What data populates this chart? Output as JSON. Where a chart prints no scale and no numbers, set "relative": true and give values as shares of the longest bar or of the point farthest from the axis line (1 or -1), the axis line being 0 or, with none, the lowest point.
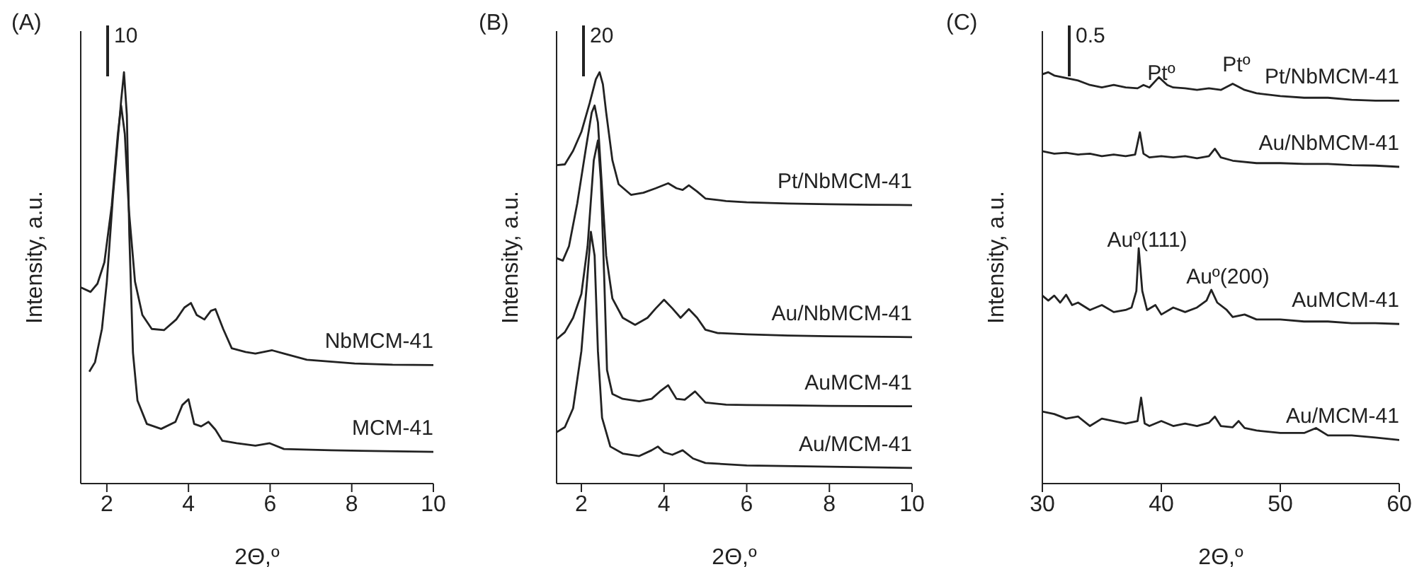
{
  "chart_data": [
    {
      "type": "line",
      "title": "(A)",
      "xlabel": "2Θ,º",
      "ylabel": "Intensity, a.u.",
      "relative": true,
      "xlim": [
        1.36,
        10
      ],
      "xticks": [
        2,
        4,
        6,
        8,
        10
      ],
      "annotations": [
        "10"
      ],
      "series": [
        {
          "name": "NbMCM-41",
          "color": "#222222",
          "x": [
            1.36,
            1.6,
            1.77,
            1.94,
            2.12,
            2.27,
            2.35,
            2.44,
            2.54,
            2.69,
            2.87,
            3.1,
            3.4,
            3.7,
            3.9,
            4.06,
            4.2,
            4.39,
            4.55,
            4.66,
            4.85,
            5.06,
            5.4,
            5.64,
            6.05,
            6.34,
            6.9,
            8.07,
            9,
            10
          ],
          "values": [
            0.477,
            0.466,
            0.486,
            0.538,
            0.676,
            0.85,
            0.919,
            0.85,
            0.665,
            0.491,
            0.41,
            0.376,
            0.373,
            0.399,
            0.428,
            0.439,
            0.41,
            0.399,
            0.42,
            0.424,
            0.376,
            0.329,
            0.32,
            0.316,
            0.324,
            0.316,
            0.301,
            0.292,
            0.289,
            0.288
          ]
        },
        {
          "name": "MCM-41",
          "color": "#222222",
          "x": [
            1.57,
            1.71,
            1.88,
            2.0,
            2.15,
            2.27,
            2.35,
            2.42,
            2.49,
            2.55,
            2.64,
            2.75,
            2.98,
            3.33,
            3.68,
            3.85,
            4.0,
            4.14,
            4.31,
            4.49,
            4.66,
            4.83,
            5.18,
            5.64,
            5.99,
            6.34,
            7.49,
            10
          ],
          "values": [
            0.272,
            0.295,
            0.376,
            0.491,
            0.699,
            0.838,
            0.931,
            1,
            0.896,
            0.607,
            0.318,
            0.202,
            0.145,
            0.133,
            0.15,
            0.191,
            0.205,
            0.145,
            0.139,
            0.15,
            0.131,
            0.104,
            0.098,
            0.092,
            0.098,
            0.084,
            0.081,
            0.077
          ]
        }
      ]
    },
    {
      "type": "line",
      "title": "(B)",
      "xlabel": "2Θ,º",
      "ylabel": "Intensity, a.u.",
      "relative": true,
      "xlim": [
        1.4,
        10
      ],
      "xticks": [
        2,
        4,
        6,
        8,
        10
      ],
      "annotations": [
        "20"
      ],
      "series": [
        {
          "name": "Pt/NbMCM-41",
          "color": "#222222",
          "x": [
            1.4,
            1.6,
            1.8,
            2.0,
            2.2,
            2.35,
            2.44,
            2.52,
            2.6,
            2.75,
            2.9,
            3.2,
            3.5,
            3.8,
            4.1,
            4.3,
            4.45,
            4.6,
            4.8,
            5.0,
            5.5,
            6,
            7,
            8,
            9,
            10
          ],
          "values": [
            0.774,
            0.776,
            0.809,
            0.855,
            0.925,
            0.983,
            1,
            0.971,
            0.902,
            0.786,
            0.728,
            0.702,
            0.707,
            0.718,
            0.73,
            0.718,
            0.714,
            0.725,
            0.71,
            0.693,
            0.687,
            0.684,
            0.681,
            0.679,
            0.678,
            0.677
          ]
        },
        {
          "name": "Au/NbMCM-41",
          "color": "#222222",
          "x": [
            1.4,
            1.55,
            1.7,
            1.9,
            2.1,
            2.25,
            2.32,
            2.4,
            2.5,
            2.6,
            2.75,
            3.0,
            3.3,
            3.6,
            3.8,
            4.0,
            4.2,
            4.4,
            4.6,
            4.8,
            5.0,
            5.3,
            6,
            7,
            8,
            10
          ],
          "values": [
            0.548,
            0.542,
            0.577,
            0.681,
            0.809,
            0.902,
            0.919,
            0.878,
            0.716,
            0.554,
            0.45,
            0.403,
            0.386,
            0.403,
            0.426,
            0.447,
            0.426,
            0.403,
            0.424,
            0.403,
            0.374,
            0.366,
            0.363,
            0.36,
            0.358,
            0.356
          ]
        },
        {
          "name": "AuMCM-41",
          "color": "#222222",
          "x": [
            1.4,
            1.6,
            1.8,
            2.0,
            2.15,
            2.3,
            2.4,
            2.47,
            2.55,
            2.62,
            2.75,
            3.0,
            3.4,
            3.7,
            3.9,
            4.1,
            4.3,
            4.5,
            4.75,
            5.0,
            5.5,
            6,
            7,
            8,
            10
          ],
          "values": [
            0.351,
            0.368,
            0.403,
            0.461,
            0.577,
            0.786,
            0.834,
            0.739,
            0.508,
            0.276,
            0.218,
            0.206,
            0.2,
            0.206,
            0.224,
            0.239,
            0.206,
            0.204,
            0.224,
            0.197,
            0.192,
            0.191,
            0.19,
            0.189,
            0.188
          ]
        },
        {
          "name": "Au/MCM-41",
          "color": "#222222",
          "x": [
            1.4,
            1.6,
            1.8,
            2.0,
            2.15,
            2.23,
            2.32,
            2.4,
            2.5,
            2.7,
            3.0,
            3.4,
            3.7,
            3.85,
            4.0,
            4.2,
            4.45,
            4.7,
            5.0,
            6,
            8,
            10
          ],
          "values": [
            0.125,
            0.137,
            0.183,
            0.322,
            0.508,
            0.612,
            0.554,
            0.322,
            0.16,
            0.09,
            0.073,
            0.067,
            0.081,
            0.09,
            0.076,
            0.07,
            0.081,
            0.061,
            0.05,
            0.044,
            0.041,
            0.038
          ]
        }
      ]
    },
    {
      "type": "line",
      "title": "(C)",
      "xlabel": "2Θ,º",
      "ylabel": "Intensity, a.u.",
      "relative": true,
      "xlim": [
        30,
        60
      ],
      "xticks": [
        30,
        40,
        50,
        60
      ],
      "annotations": [
        "0.5",
        "Ptº",
        "Ptº",
        "Auº(111)",
        "Auº(200)"
      ],
      "series": [
        {
          "name": "Pt/NbMCM-41",
          "color": "#222222",
          "x": [
            30,
            30.5,
            31,
            32,
            33,
            34,
            35,
            36,
            37,
            38,
            38.5,
            39,
            39.8,
            40.5,
            41,
            42,
            43,
            44,
            45,
            46,
            47,
            48,
            50,
            52,
            54,
            56,
            58,
            60
          ],
          "values": [
            0.995,
            1,
            0.992,
            0.986,
            0.98,
            0.969,
            0.963,
            0.969,
            0.963,
            0.961,
            0.969,
            0.963,
            0.988,
            0.969,
            0.963,
            0.961,
            0.957,
            0.961,
            0.957,
            0.972,
            0.957,
            0.949,
            0.942,
            0.938,
            0.938,
            0.933,
            0.931,
            0.931
          ]
        },
        {
          "name": "Au/NbMCM-41",
          "color": "#222222",
          "x": [
            30,
            31,
            32,
            33,
            34,
            35,
            36,
            37,
            37.8,
            38.2,
            38.5,
            39,
            40,
            41,
            42,
            43,
            44,
            44.5,
            45,
            46,
            48,
            50,
            52,
            54,
            56,
            58,
            60
          ],
          "values": [
            0.808,
            0.802,
            0.804,
            0.8,
            0.802,
            0.796,
            0.8,
            0.796,
            0.8,
            0.854,
            0.802,
            0.793,
            0.796,
            0.793,
            0.796,
            0.791,
            0.796,
            0.814,
            0.793,
            0.785,
            0.779,
            0.779,
            0.777,
            0.777,
            0.774,
            0.773,
            0.77
          ]
        },
        {
          "name": "AuMCM-41",
          "color": "#222222",
          "x": [
            30,
            30.5,
            31,
            31.5,
            32,
            32.5,
            33,
            34,
            35,
            36,
            37,
            37.5,
            37.9,
            38.1,
            38.4,
            38.8,
            39.5,
            40,
            41,
            42,
            43,
            43.8,
            44.2,
            44.7,
            45.5,
            46,
            47,
            48,
            50,
            52,
            54,
            56,
            58,
            60
          ],
          "values": [
            0.457,
            0.445,
            0.457,
            0.44,
            0.459,
            0.434,
            0.44,
            0.422,
            0.434,
            0.417,
            0.422,
            0.428,
            0.468,
            0.572,
            0.468,
            0.422,
            0.434,
            0.411,
            0.428,
            0.417,
            0.428,
            0.445,
            0.471,
            0.44,
            0.422,
            0.405,
            0.411,
            0.399,
            0.399,
            0.394,
            0.394,
            0.39,
            0.39,
            0.388
          ]
        },
        {
          "name": "Au/MCM-41",
          "color": "#222222",
          "x": [
            30,
            31,
            32,
            33,
            34,
            35,
            36,
            37,
            38,
            38.3,
            38.6,
            39,
            40,
            41,
            42,
            43,
            44,
            44.5,
            45,
            46,
            46.5,
            47,
            48,
            50,
            52,
            53,
            54,
            56,
            58,
            60
          ],
          "values": [
            0.175,
            0.169,
            0.158,
            0.163,
            0.14,
            0.158,
            0.152,
            0.146,
            0.152,
            0.209,
            0.146,
            0.14,
            0.152,
            0.14,
            0.146,
            0.14,
            0.148,
            0.163,
            0.14,
            0.137,
            0.152,
            0.135,
            0.129,
            0.123,
            0.123,
            0.135,
            0.117,
            0.117,
            0.112,
            0.106
          ]
        }
      ]
    }
  ]
}
